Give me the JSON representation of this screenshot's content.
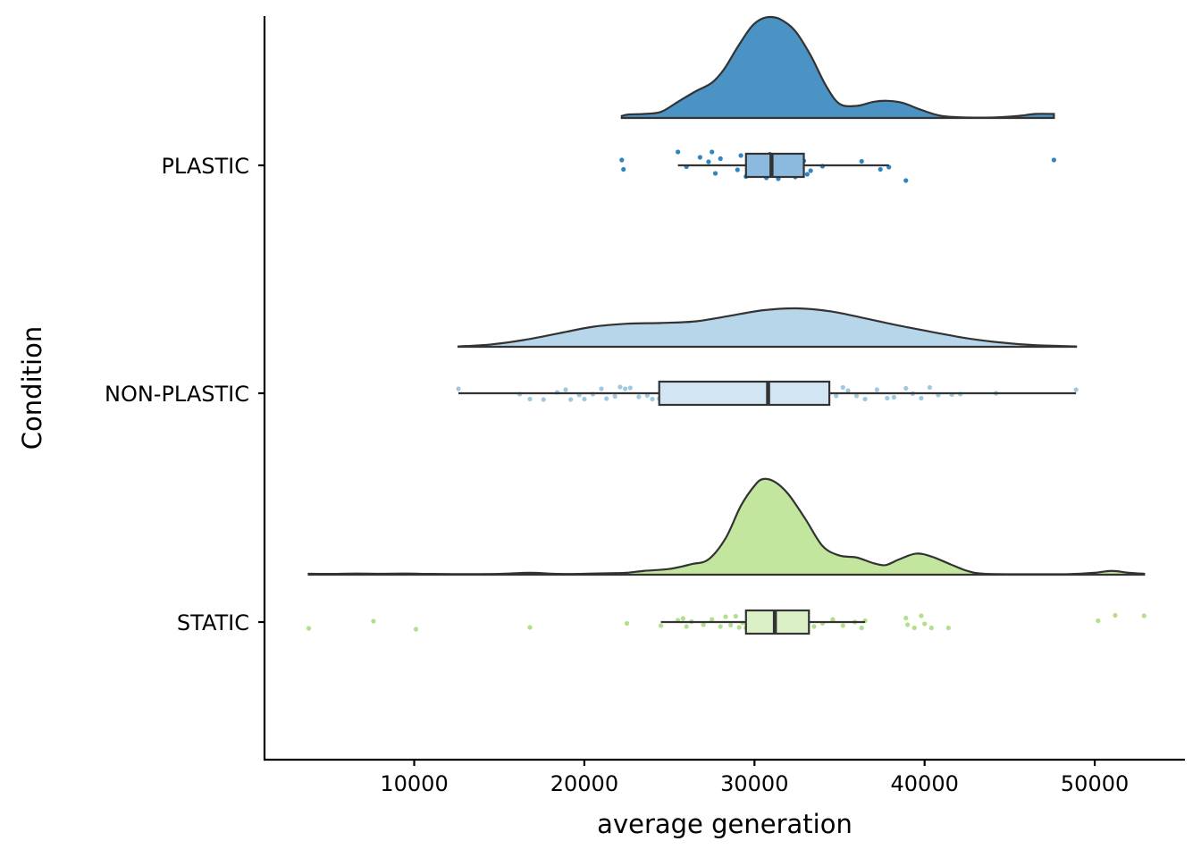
{
  "chart_data": {
    "type": "raincloud",
    "xlabel": "average generation",
    "ylabel": "Condition",
    "xlim": [
      1200,
      55300
    ],
    "x_ticks": [
      10000,
      20000,
      30000,
      40000,
      50000
    ],
    "grid": false,
    "legend": "none",
    "categories": [
      "PLASTIC",
      "NON-PLASTIC",
      "STATIC"
    ],
    "series": [
      {
        "category": "PLASTIC",
        "color": "#2e86c1",
        "fill": "#4a93c4",
        "box_fill": "#8cb9de",
        "range": [
          22200,
          47600
        ],
        "box": {
          "whisker_low": 25500,
          "q1": 29500,
          "median": 31000,
          "q3": 32900,
          "whisker_high": 37900
        },
        "density": [
          [
            22200,
            0.02
          ],
          [
            22600,
            0.035
          ],
          [
            23500,
            0.04
          ],
          [
            24500,
            0.06
          ],
          [
            25500,
            0.16
          ],
          [
            26500,
            0.26
          ],
          [
            27500,
            0.35
          ],
          [
            28200,
            0.48
          ],
          [
            29000,
            0.7
          ],
          [
            29800,
            0.9
          ],
          [
            30400,
            0.98
          ],
          [
            31000,
            1.0
          ],
          [
            31600,
            0.97
          ],
          [
            32400,
            0.86
          ],
          [
            33300,
            0.62
          ],
          [
            34200,
            0.32
          ],
          [
            35000,
            0.14
          ],
          [
            36000,
            0.12
          ],
          [
            37000,
            0.16
          ],
          [
            37800,
            0.17
          ],
          [
            38700,
            0.15
          ],
          [
            39800,
            0.08
          ],
          [
            41000,
            0.02
          ],
          [
            42500,
            0.005
          ],
          [
            44000,
            0.005
          ],
          [
            45500,
            0.02
          ],
          [
            46500,
            0.04
          ],
          [
            47600,
            0.04
          ]
        ],
        "points": [
          [
            22200,
            -0.12
          ],
          [
            22300,
            0.09
          ],
          [
            25500,
            -0.3
          ],
          [
            26000,
            0.03
          ],
          [
            26800,
            -0.18
          ],
          [
            27300,
            -0.08
          ],
          [
            27500,
            -0.3
          ],
          [
            27700,
            0.18
          ],
          [
            28000,
            -0.15
          ],
          [
            29000,
            0.1
          ],
          [
            29200,
            -0.22
          ],
          [
            29500,
            0.25
          ],
          [
            29700,
            -0.2
          ],
          [
            29900,
            0.15
          ],
          [
            30100,
            -0.08
          ],
          [
            30300,
            0.22
          ],
          [
            30500,
            0.05
          ],
          [
            30700,
            0.28
          ],
          [
            30900,
            -0.25
          ],
          [
            31000,
            0.12
          ],
          [
            31200,
            -0.12
          ],
          [
            31400,
            0.3
          ],
          [
            31600,
            0.18
          ],
          [
            31800,
            -0.05
          ],
          [
            32000,
            0.1
          ],
          [
            32200,
            -0.2
          ],
          [
            32400,
            0.26
          ],
          [
            32500,
            0.16
          ],
          [
            32700,
            0.08
          ],
          [
            32900,
            -0.1
          ],
          [
            33100,
            0.2
          ],
          [
            33300,
            0.12
          ],
          [
            34000,
            0.02
          ],
          [
            36300,
            -0.09
          ],
          [
            37400,
            0.09
          ],
          [
            37900,
            0.04
          ],
          [
            38900,
            0.34
          ],
          [
            47600,
            -0.12
          ]
        ]
      },
      {
        "category": "NON-PLASTIC",
        "color": "#9ecae1",
        "fill": "#b8d6ea",
        "box_fill": "#d2e5f2",
        "range": [
          12600,
          48900
        ],
        "box": {
          "whisker_low": 12600,
          "q1": 24400,
          "median": 30800,
          "q3": 34400,
          "whisker_high": 48900
        },
        "density": [
          [
            12600,
            0.01
          ],
          [
            14500,
            0.06
          ],
          [
            16500,
            0.18
          ],
          [
            18500,
            0.35
          ],
          [
            20500,
            0.52
          ],
          [
            22500,
            0.6
          ],
          [
            24500,
            0.62
          ],
          [
            26500,
            0.66
          ],
          [
            28500,
            0.8
          ],
          [
            30500,
            0.95
          ],
          [
            32500,
            1.0
          ],
          [
            34500,
            0.92
          ],
          [
            36500,
            0.74
          ],
          [
            38500,
            0.55
          ],
          [
            40500,
            0.38
          ],
          [
            42500,
            0.22
          ],
          [
            44500,
            0.11
          ],
          [
            46500,
            0.04
          ],
          [
            48900,
            0.01
          ]
        ],
        "points": [
          [
            12600,
            -0.1
          ],
          [
            16200,
            0.02
          ],
          [
            16800,
            0.13
          ],
          [
            17600,
            0.14
          ],
          [
            18400,
            -0.02
          ],
          [
            18900,
            -0.08
          ],
          [
            19200,
            0.14
          ],
          [
            19700,
            0.04
          ],
          [
            20000,
            0.13
          ],
          [
            20500,
            0.02
          ],
          [
            21000,
            -0.1
          ],
          [
            21300,
            0.12
          ],
          [
            21800,
            0.07
          ],
          [
            22100,
            -0.14
          ],
          [
            22400,
            -0.1
          ],
          [
            22700,
            -0.12
          ],
          [
            23200,
            0.08
          ],
          [
            23700,
            0.05
          ],
          [
            24000,
            0.13
          ],
          [
            24400,
            0.12
          ],
          [
            25000,
            -0.13
          ],
          [
            25500,
            -0.1
          ],
          [
            26000,
            -0.11
          ],
          [
            26500,
            0.03
          ],
          [
            27000,
            0.1
          ],
          [
            27600,
            -0.03
          ],
          [
            28000,
            0.11
          ],
          [
            28400,
            0.04
          ],
          [
            28900,
            -0.07
          ],
          [
            29200,
            0.12
          ],
          [
            29600,
            -0.14
          ],
          [
            30000,
            -0.05
          ],
          [
            30400,
            0.09
          ],
          [
            30800,
            0.13
          ],
          [
            31200,
            -0.06
          ],
          [
            31600,
            0.07
          ],
          [
            32000,
            -0.02
          ],
          [
            32500,
            0.1
          ],
          [
            33100,
            -0.09
          ],
          [
            33500,
            0.13
          ],
          [
            33800,
            0.02
          ],
          [
            34200,
            -0.12
          ],
          [
            34800,
            0.06
          ],
          [
            35200,
            -0.13
          ],
          [
            35500,
            -0.06
          ],
          [
            36000,
            0.06
          ],
          [
            36500,
            0.13
          ],
          [
            37200,
            -0.08
          ],
          [
            37800,
            0.11
          ],
          [
            38200,
            0.09
          ],
          [
            38900,
            -0.11
          ],
          [
            39300,
            0.01
          ],
          [
            39800,
            0.11
          ],
          [
            40300,
            -0.13
          ],
          [
            40800,
            0.04
          ],
          [
            41600,
            0.03
          ],
          [
            42100,
            0.02
          ],
          [
            44200,
            0.0
          ],
          [
            48900,
            -0.08
          ]
        ]
      },
      {
        "category": "STATIC",
        "color": "#b2df8a",
        "fill": "#c2e69e",
        "box_fill": "#dcf0c8",
        "range": [
          3800,
          52900
        ],
        "box": {
          "whisker_low": 24500,
          "q1": 29500,
          "median": 31200,
          "q3": 33200,
          "whisker_high": 36500
        },
        "density": [
          [
            3800,
            0.01
          ],
          [
            5000,
            0.008
          ],
          [
            6500,
            0.012
          ],
          [
            8000,
            0.01
          ],
          [
            9500,
            0.012
          ],
          [
            11000,
            0.008
          ],
          [
            13000,
            0.006
          ],
          [
            15000,
            0.008
          ],
          [
            16800,
            0.02
          ],
          [
            18500,
            0.008
          ],
          [
            20000,
            0.01
          ],
          [
            21500,
            0.015
          ],
          [
            22500,
            0.02
          ],
          [
            23500,
            0.04
          ],
          [
            25000,
            0.06
          ],
          [
            26300,
            0.11
          ],
          [
            27300,
            0.16
          ],
          [
            28300,
            0.38
          ],
          [
            29200,
            0.72
          ],
          [
            30000,
            0.93
          ],
          [
            30500,
            1.0
          ],
          [
            31200,
            0.97
          ],
          [
            32000,
            0.84
          ],
          [
            33000,
            0.58
          ],
          [
            34000,
            0.3
          ],
          [
            35000,
            0.2
          ],
          [
            36000,
            0.18
          ],
          [
            37000,
            0.12
          ],
          [
            37700,
            0.1
          ],
          [
            38500,
            0.16
          ],
          [
            39500,
            0.22
          ],
          [
            40400,
            0.19
          ],
          [
            41500,
            0.11
          ],
          [
            42500,
            0.04
          ],
          [
            43500,
            0.01
          ],
          [
            46000,
            0.005
          ],
          [
            48500,
            0.006
          ],
          [
            50000,
            0.02
          ],
          [
            51000,
            0.04
          ],
          [
            52000,
            0.02
          ],
          [
            52900,
            0.01
          ]
        ],
        "points": [
          [
            3800,
            0.14
          ],
          [
            7600,
            -0.02
          ],
          [
            10100,
            0.16
          ],
          [
            16800,
            0.12
          ],
          [
            22500,
            0.03
          ],
          [
            24500,
            0.08
          ],
          [
            25500,
            -0.04
          ],
          [
            25800,
            -0.08
          ],
          [
            26000,
            0.1
          ],
          [
            26300,
            -0.01
          ],
          [
            27000,
            0.06
          ],
          [
            27500,
            -0.06
          ],
          [
            28000,
            0.1
          ],
          [
            28300,
            -0.12
          ],
          [
            28600,
            0.07
          ],
          [
            28900,
            -0.13
          ],
          [
            29100,
            0.12
          ],
          [
            29300,
            0.02
          ],
          [
            29500,
            0.13
          ],
          [
            29700,
            -0.08
          ],
          [
            29900,
            0.1
          ],
          [
            30100,
            -0.12
          ],
          [
            30200,
            0.05
          ],
          [
            30400,
            0.12
          ],
          [
            30600,
            -0.05
          ],
          [
            30800,
            0.06
          ],
          [
            31000,
            0.1
          ],
          [
            31100,
            -0.1
          ],
          [
            31300,
            0.04
          ],
          [
            31500,
            0.12
          ],
          [
            31700,
            -0.13
          ],
          [
            31900,
            0.07
          ],
          [
            32100,
            -0.03
          ],
          [
            32300,
            0.09
          ],
          [
            32500,
            -0.08
          ],
          [
            32700,
            0.05
          ],
          [
            32900,
            -0.13
          ],
          [
            33100,
            0.11
          ],
          [
            33500,
            0.1
          ],
          [
            34000,
            0.03
          ],
          [
            34600,
            -0.06
          ],
          [
            35200,
            0.08
          ],
          [
            35900,
            0.0
          ],
          [
            36300,
            0.13
          ],
          [
            36500,
            -0.03
          ],
          [
            38900,
            -0.09
          ],
          [
            39000,
            0.06
          ],
          [
            39400,
            0.13
          ],
          [
            39800,
            -0.14
          ],
          [
            40000,
            0.04
          ],
          [
            40400,
            0.13
          ],
          [
            41400,
            0.13
          ],
          [
            50200,
            -0.03
          ],
          [
            51200,
            -0.15
          ],
          [
            52900,
            -0.14
          ]
        ]
      }
    ]
  }
}
